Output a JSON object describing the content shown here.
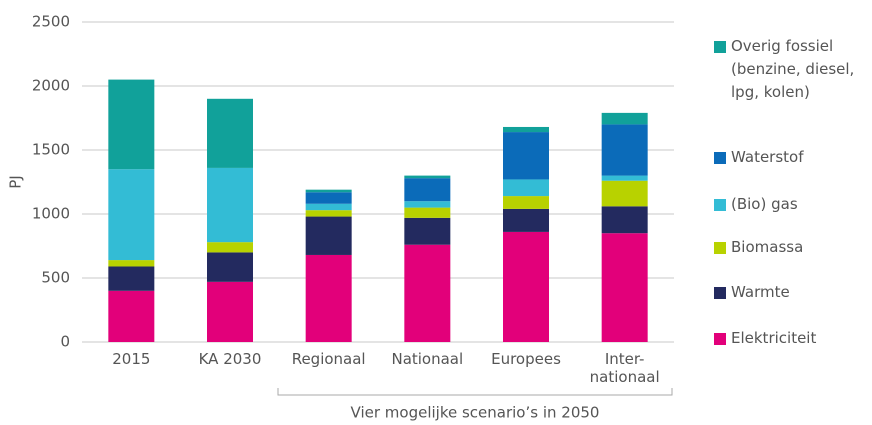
{
  "chart_data": {
    "type": "stacked_bar",
    "y_label": "PJ",
    "annotation": "Vier mogelijke scenario’s in 2050",
    "categories": [
      "2015",
      "KA 2030",
      "Regionaal",
      "Nationaal",
      "Europees",
      "Inter-\nnationaal"
    ],
    "series": [
      {
        "name": "Elektriciteit",
        "color": "#e2007a",
        "values": [
          400,
          470,
          680,
          760,
          860,
          850
        ]
      },
      {
        "name": "Warmte",
        "color": "#232a5f",
        "values": [
          190,
          230,
          300,
          210,
          180,
          210
        ]
      },
      {
        "name": "Biomassa",
        "color": "#b8d200",
        "values": [
          50,
          80,
          50,
          80,
          100,
          200
        ]
      },
      {
        "name": "(Bio) gas",
        "color": "#33bcd5",
        "values": [
          710,
          580,
          50,
          50,
          130,
          40
        ]
      },
      {
        "name": "Waterstof",
        "color": "#0b6bb9",
        "values": [
          0,
          0,
          90,
          180,
          370,
          400
        ]
      },
      {
        "name": "Overig fossiel\n(benzine, diesel,\nlpg, kolen)",
        "color": "#11a19a",
        "values": [
          700,
          540,
          20,
          20,
          40,
          90
        ]
      }
    ],
    "ylim": [
      0,
      2500
    ],
    "yticks": [
      0,
      500,
      1000,
      1500,
      2000,
      2500
    ],
    "grid": true
  }
}
